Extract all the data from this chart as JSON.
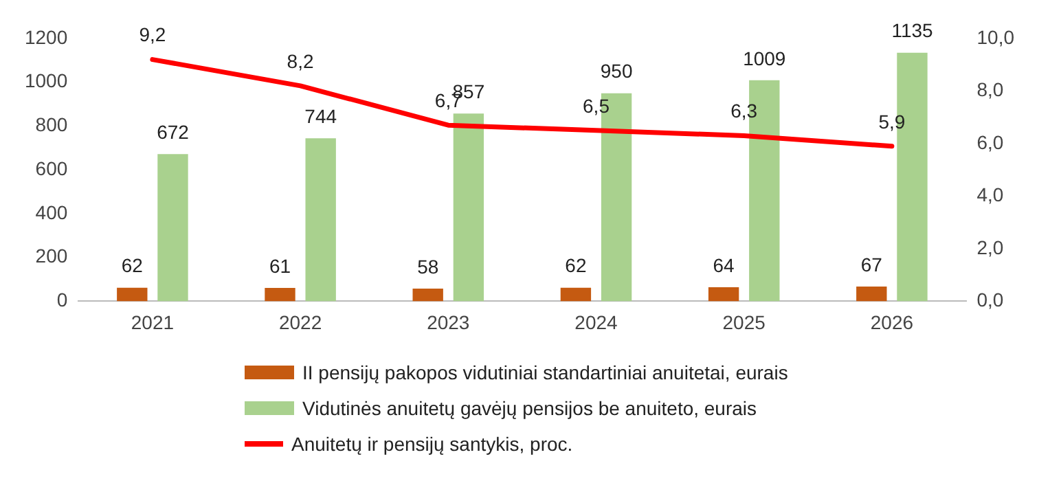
{
  "chart_data": {
    "type": "bar",
    "categories": [
      "2021",
      "2022",
      "2023",
      "2024",
      "2025",
      "2026"
    ],
    "series": [
      {
        "name": "II pensijų pakopos vidutiniai standartiniai anuitetai, eurais",
        "color": "#c55a11",
        "values": [
          62,
          61,
          58,
          62,
          64,
          67
        ],
        "value_labels": [
          "62",
          "61",
          "58",
          "62",
          "64",
          "67"
        ]
      },
      {
        "name": "Vidutinės anuitetų gavėjų pensijos be anuiteto, eurais",
        "color": "#a9d18e",
        "values": [
          672,
          744,
          857,
          950,
          1009,
          1135
        ],
        "value_labels": [
          "672",
          "744",
          "857",
          "950",
          "1009",
          "1135"
        ]
      },
      {
        "name": "Anuitetų ir pensijų santykis, proc.",
        "type": "line",
        "axis": "y2",
        "color": "#ff0000",
        "values": [
          9.2,
          8.2,
          6.7,
          6.5,
          6.3,
          5.9
        ],
        "value_labels": [
          "9,2",
          "8,2",
          "6,7",
          "6,5",
          "6,3",
          "5,9"
        ]
      }
    ],
    "ylim": [
      0,
      1200
    ],
    "yticks": [
      0,
      200,
      400,
      600,
      800,
      1000,
      1200
    ],
    "y2lim": [
      0,
      10
    ],
    "y2ticks": [
      {
        "value": 0,
        "label": "0,0"
      },
      {
        "value": 2,
        "label": "2,0"
      },
      {
        "value": 4,
        "label": "4,0"
      },
      {
        "value": 6,
        "label": "6,0"
      },
      {
        "value": 8,
        "label": "8,0"
      },
      {
        "value": 10,
        "label": "10,0"
      }
    ],
    "legend": "bottom",
    "marker": "none"
  }
}
